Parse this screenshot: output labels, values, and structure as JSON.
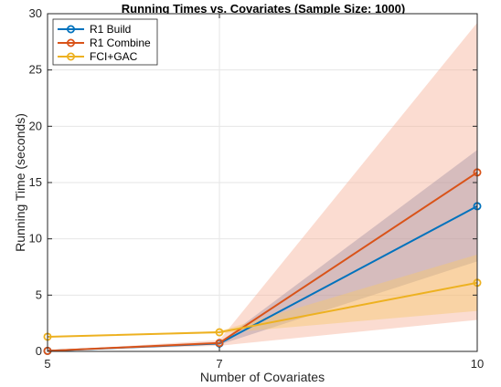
{
  "chart_data": {
    "type": "line",
    "title": "Running Times vs. Covariates (Sample Size: 1000)",
    "xlabel": "Number of Covariates",
    "ylabel": "Running Time (seconds)",
    "x": [
      5,
      7,
      10
    ],
    "xlim": [
      5,
      10
    ],
    "ylim": [
      0,
      30
    ],
    "xticks": [
      5,
      7,
      10
    ],
    "yticks": [
      0,
      5,
      10,
      15,
      20,
      25,
      30
    ],
    "grid": true,
    "legend_position": "top-left",
    "series": [
      {
        "name": "R1 Build",
        "color": "#0072BD",
        "values": [
          0.05,
          0.7,
          12.9
        ],
        "band_lower": [
          0.05,
          0.6,
          8.0
        ],
        "band_upper": [
          0.05,
          0.8,
          17.9
        ],
        "band_color": "#6b7fae"
      },
      {
        "name": "R1 Combine",
        "color": "#D95319",
        "values": [
          0.05,
          0.75,
          15.9
        ],
        "band_lower": [
          0.05,
          0.5,
          2.8
        ],
        "band_upper": [
          0.05,
          1.0,
          29.2
        ],
        "band_color": "#f6b29a"
      },
      {
        "name": "FCI+GAC",
        "color": "#EDB120",
        "values": [
          1.3,
          1.7,
          6.1
        ],
        "band_lower": [
          1.3,
          1.6,
          3.6
        ],
        "band_upper": [
          1.3,
          1.8,
          8.6
        ],
        "band_color": "#f7c86f"
      }
    ]
  }
}
